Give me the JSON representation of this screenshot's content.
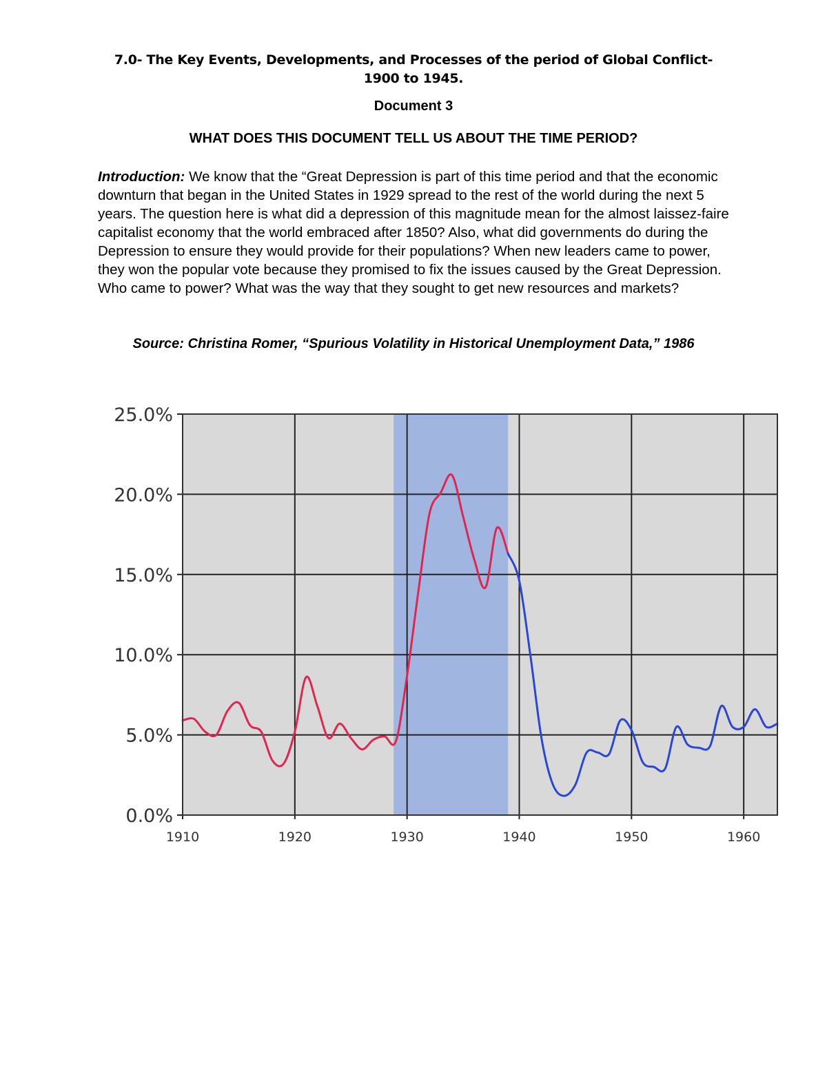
{
  "document": {
    "title_line1": "7.0- The Key Events, Developments, and Processes of the period of Global Conflict-",
    "title_line2": "1900 to 1945.",
    "doc_label": "Document 3",
    "question": "WHAT DOES THIS DOCUMENT TELL US ABOUT THE TIME PERIOD?",
    "intro_label": "Introduction:",
    "intro_text": " We know that the “Great Depression is part of this time period and that the economic downturn that began in the United States in 1929 spread to the rest of the world during the next 5 years. The question here is what did a depression of this magnitude mean for the almost laissez-faire capitalist economy that the world embraced after 1850? Also, what did governments do during the Depression to ensure they would provide for their populations? When new leaders came to power, they won the popular vote because they promised to fix the issues caused by the Great Depression. Who came to power? What was the way that they sought to get new resources and markets?",
    "source": "Source: Christina Romer, “Spurious Volatility in Historical Unemployment Data,” 1986"
  },
  "chart_data": {
    "type": "line",
    "title": "",
    "xlabel": "",
    "ylabel": "",
    "xlim": [
      1910,
      1963
    ],
    "ylim": [
      0,
      25
    ],
    "x_ticks": [
      1910,
      1920,
      1930,
      1940,
      1950,
      1960
    ],
    "x_tick_labels": [
      "1910",
      "1920",
      "1930",
      "1940",
      "1950",
      "1960"
    ],
    "y_ticks": [
      0,
      5,
      10,
      15,
      20,
      25
    ],
    "y_tick_labels": [
      "0.0%",
      "5.0%",
      "10.0%",
      "15.0%",
      "20.0%",
      "25.0%"
    ],
    "grid": true,
    "shaded_region": {
      "x_start": 1928.8,
      "x_end": 1939,
      "color": "#a0b6e0"
    },
    "colors": {
      "plot_bg": "#d9d9d9",
      "grid": "#222222",
      "series_early": "#e0264f",
      "series_late": "#2a46d6"
    },
    "series": [
      {
        "color": "#e0264f",
        "x": [
          1910,
          1911,
          1912,
          1913,
          1914,
          1915,
          1916,
          1917,
          1918,
          1919,
          1920,
          1921,
          1922,
          1923,
          1924,
          1925,
          1926,
          1927,
          1928,
          1929,
          1930,
          1931,
          1932,
          1933,
          1934,
          1935,
          1936,
          1937,
          1938,
          1939
        ],
        "y": [
          5.9,
          6.0,
          5.2,
          5.0,
          6.5,
          7.0,
          5.6,
          5.2,
          3.4,
          3.2,
          5.2,
          8.6,
          6.8,
          4.8,
          5.7,
          4.8,
          4.1,
          4.7,
          4.9,
          4.6,
          8.7,
          13.9,
          18.8,
          20.1,
          21.2,
          18.6,
          15.9,
          14.2,
          17.9,
          16.3
        ]
      },
      {
        "color": "#2a46d6",
        "x": [
          1939,
          1940,
          1941,
          1942,
          1943,
          1944,
          1945,
          1946,
          1947,
          1948,
          1949,
          1950,
          1951,
          1952,
          1953,
          1954,
          1955,
          1956,
          1957,
          1958,
          1959,
          1960,
          1961,
          1962,
          1963
        ],
        "y": [
          16.3,
          14.6,
          9.9,
          4.7,
          1.9,
          1.2,
          1.9,
          3.9,
          3.9,
          3.8,
          5.9,
          5.3,
          3.3,
          3.0,
          2.9,
          5.5,
          4.4,
          4.2,
          4.3,
          6.8,
          5.5,
          5.5,
          6.6,
          5.5,
          5.7
        ]
      }
    ]
  }
}
